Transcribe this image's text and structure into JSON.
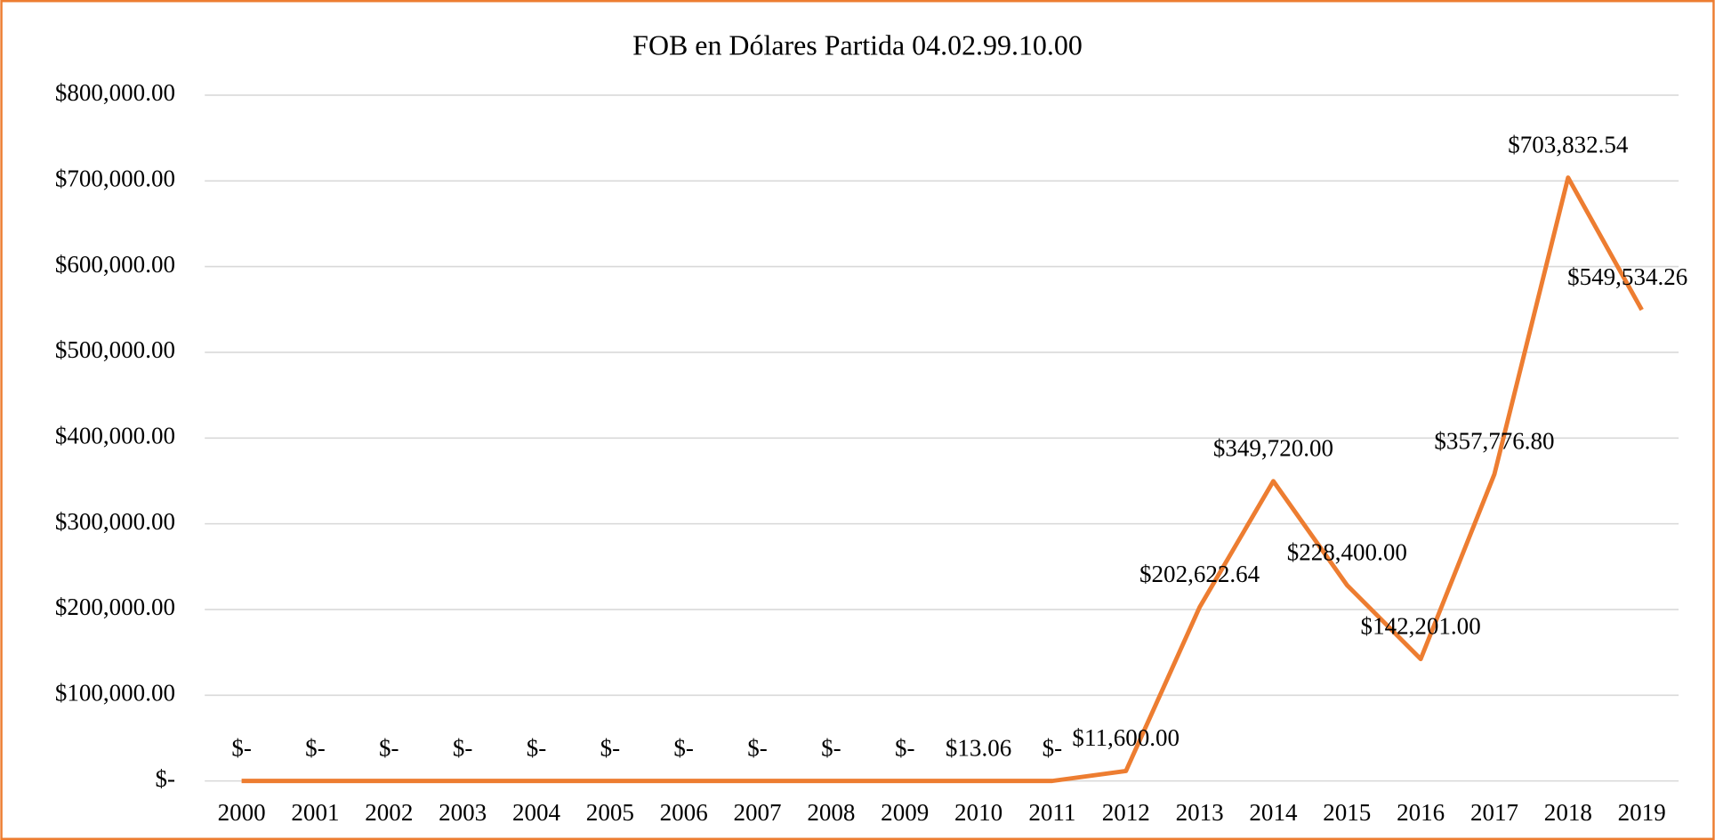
{
  "chart_data": {
    "type": "line",
    "title": "FOB en Dólares Partida 04.02.99.10.00",
    "categories": [
      "2000",
      "2001",
      "2002",
      "2003",
      "2004",
      "2005",
      "2006",
      "2007",
      "2008",
      "2009",
      "2010",
      "2011",
      "2012",
      "2013",
      "2014",
      "2015",
      "2016",
      "2017",
      "2018",
      "2019"
    ],
    "series": [
      {
        "name": "FOB",
        "color": "#ed7d31",
        "values": [
          0,
          0,
          0,
          0,
          0,
          0,
          0,
          0,
          0,
          0,
          13.06,
          0,
          11600,
          202622.64,
          349720,
          228400,
          142201,
          357776.8,
          703832.54,
          549534.26
        ],
        "value_labels": [
          "$-",
          "$-",
          "$-",
          "$-",
          "$-",
          "$-",
          "$-",
          "$-",
          "$-",
          "$-",
          "$13.06",
          "$-",
          "$11,600.00",
          "$202,622.64",
          "$349,720.00",
          "$228,400.00",
          "$142,201.00",
          "$357,776.80",
          "$703,832.54",
          "$549,534.26"
        ]
      }
    ],
    "ylim": [
      0,
      800000
    ],
    "yticks": [
      {
        "value": 0,
        "label": "$-"
      },
      {
        "value": 100000,
        "label": "$100,000.00"
      },
      {
        "value": 200000,
        "label": "$200,000.00"
      },
      {
        "value": 300000,
        "label": "$300,000.00"
      },
      {
        "value": 400000,
        "label": "$400,000.00"
      },
      {
        "value": 500000,
        "label": "$500,000.00"
      },
      {
        "value": 600000,
        "label": "$600,000.00"
      },
      {
        "value": 700000,
        "label": "$700,000.00"
      },
      {
        "value": 800000,
        "label": "$800,000.00"
      }
    ],
    "grid": true
  }
}
